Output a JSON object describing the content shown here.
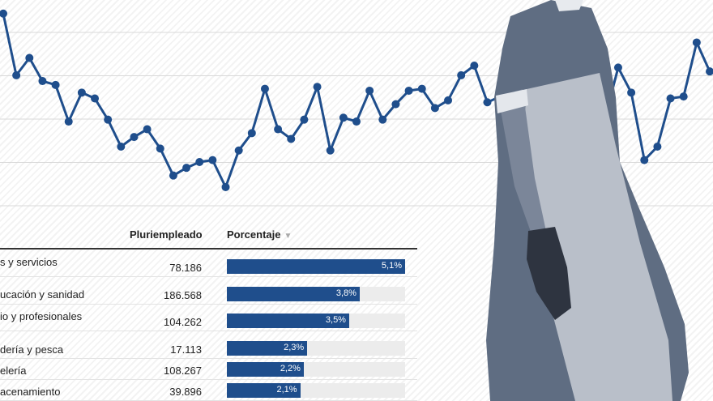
{
  "colors": {
    "line": "#1f4e8c",
    "bar": "#1f4e8c",
    "track": "#ececec",
    "grid": "#d9d9d9"
  },
  "chart_data": [
    {
      "type": "line",
      "title": "",
      "xlabel": "",
      "ylabel": "",
      "grid": true,
      "ylim": [
        0,
        100
      ],
      "x": [
        1,
        2,
        3,
        4,
        5,
        6,
        7,
        8,
        9,
        10,
        11,
        12,
        13,
        14,
        15,
        16,
        17,
        18,
        19,
        20,
        21,
        22,
        23,
        24,
        25,
        26,
        27,
        28,
        29,
        30,
        31,
        32,
        33,
        34,
        35,
        36,
        37,
        38,
        39,
        40,
        41,
        42,
        43,
        44,
        45,
        46,
        47,
        48,
        49,
        50,
        51,
        52,
        53,
        54,
        55
      ],
      "series": [
        {
          "name": "",
          "values": [
            98,
            66,
            75,
            63,
            61,
            42,
            57,
            54,
            43,
            29,
            34,
            38,
            28,
            14,
            18,
            21,
            22,
            8,
            27,
            36,
            59,
            38,
            33,
            43,
            60,
            27,
            44,
            42,
            58,
            43,
            51,
            58,
            59,
            49,
            53,
            66,
            71,
            52,
            55,
            56,
            55,
            37,
            51,
            53,
            46,
            70,
            44,
            70,
            57,
            22,
            29,
            54,
            55,
            83,
            68
          ]
        }
      ]
    },
    {
      "type": "table",
      "columns": [
        "",
        "Pluriempleado",
        "Porcentaje"
      ],
      "sort_indicator": "▼",
      "rows": [
        {
          "sector": "s y servicios",
          "count": "78.186",
          "pct": 5.1,
          "pct_label": "5,1%"
        },
        {
          "sector": "ucación y sanidad",
          "count": "186.568",
          "pct": 3.8,
          "pct_label": "3,8%"
        },
        {
          "sector": "io y profesionales",
          "count": "104.262",
          "pct": 3.5,
          "pct_label": "3,5%"
        },
        {
          "sector": "dería y pesca",
          "count": "17.113",
          "pct": 2.3,
          "pct_label": "2,3%"
        },
        {
          "sector": "elería",
          "count": "108.267",
          "pct": 2.2,
          "pct_label": "2,2%"
        },
        {
          "sector": "acenamiento",
          "count": "39.896",
          "pct": 2.1,
          "pct_label": "2,1%"
        }
      ],
      "pct_max": 5.1
    }
  ]
}
